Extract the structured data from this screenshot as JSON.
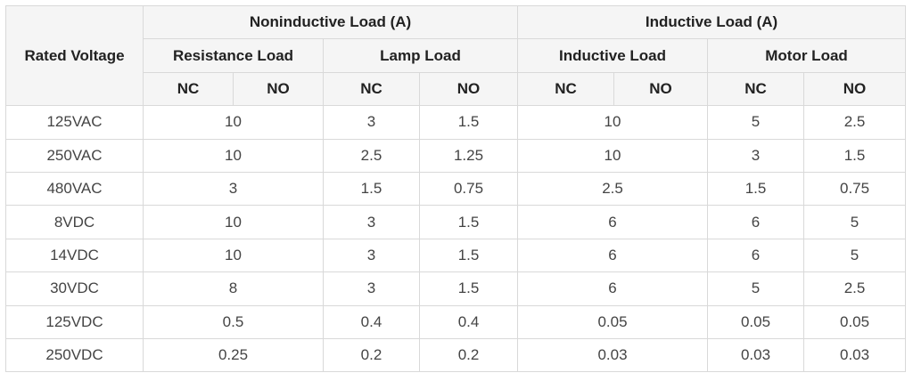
{
  "header": {
    "rated_voltage": "Rated Voltage",
    "noninductive": "Noninductive Load (A)",
    "inductive": "Inductive Load (A)",
    "resistance_load": "Resistance Load",
    "lamp_load": "Lamp Load",
    "inductive_load": "Inductive Load",
    "motor_load": "Motor Load",
    "nc": "NC",
    "no": "NO"
  },
  "rows": [
    {
      "voltage": "125VAC",
      "resistance": "10",
      "lamp_nc": "3",
      "lamp_no": "1.5",
      "inductive": "10",
      "motor_nc": "5",
      "motor_no": "2.5"
    },
    {
      "voltage": "250VAC",
      "resistance": "10",
      "lamp_nc": "2.5",
      "lamp_no": "1.25",
      "inductive": "10",
      "motor_nc": "3",
      "motor_no": "1.5"
    },
    {
      "voltage": "480VAC",
      "resistance": "3",
      "lamp_nc": "1.5",
      "lamp_no": "0.75",
      "inductive": "2.5",
      "motor_nc": "1.5",
      "motor_no": "0.75"
    },
    {
      "voltage": "8VDC",
      "resistance": "10",
      "lamp_nc": "3",
      "lamp_no": "1.5",
      "inductive": "6",
      "motor_nc": "6",
      "motor_no": "5"
    },
    {
      "voltage": "14VDC",
      "resistance": "10",
      "lamp_nc": "3",
      "lamp_no": "1.5",
      "inductive": "6",
      "motor_nc": "6",
      "motor_no": "5"
    },
    {
      "voltage": "30VDC",
      "resistance": "8",
      "lamp_nc": "3",
      "lamp_no": "1.5",
      "inductive": "6",
      "motor_nc": "5",
      "motor_no": "2.5"
    },
    {
      "voltage": "125VDC",
      "resistance": "0.5",
      "lamp_nc": "0.4",
      "lamp_no": "0.4",
      "inductive": "0.05",
      "motor_nc": "0.05",
      "motor_no": "0.05"
    },
    {
      "voltage": "250VDC",
      "resistance": "0.25",
      "lamp_nc": "0.2",
      "lamp_no": "0.2",
      "inductive": "0.03",
      "motor_nc": "0.03",
      "motor_no": "0.03"
    }
  ]
}
